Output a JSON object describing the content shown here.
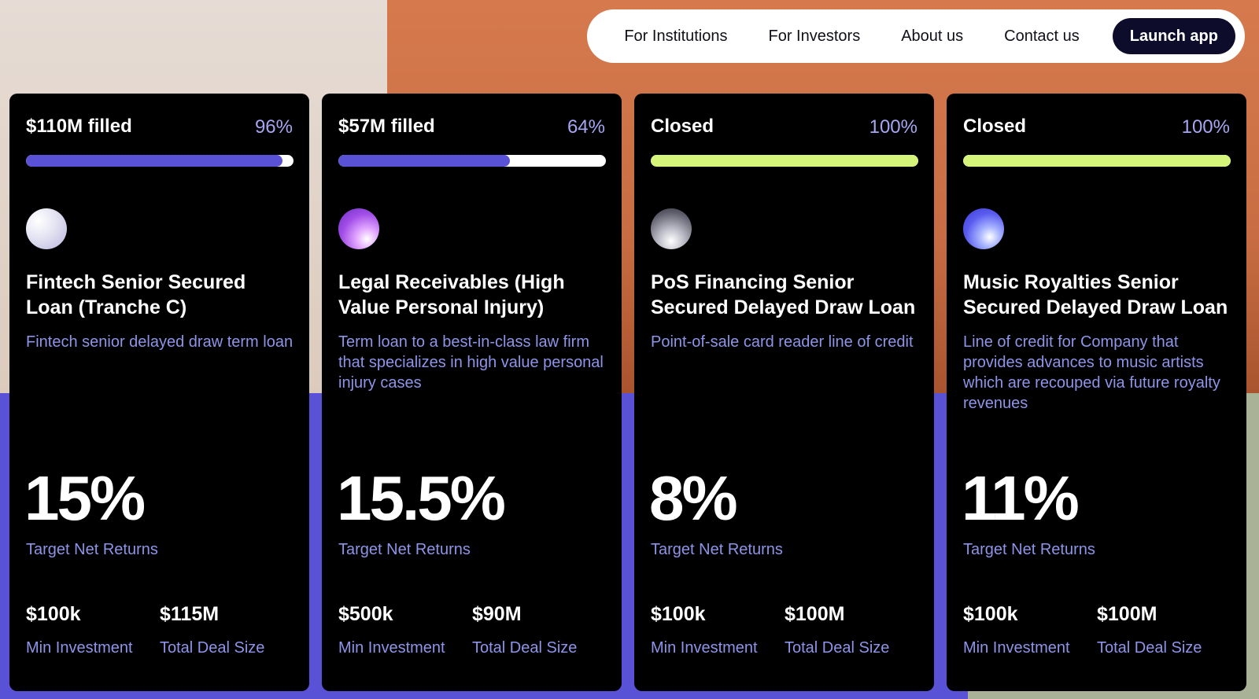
{
  "nav": {
    "links": [
      "For Institutions",
      "For Investors",
      "About us",
      "Contact us"
    ],
    "cta_label": "Launch app"
  },
  "colors": {
    "bar_blue": "#5a52d6",
    "bar_green": "#d4f57a",
    "accent_text": "#8e94e8"
  },
  "cards": [
    {
      "status": "$110M filled",
      "percent": "96%",
      "progress": 0.96,
      "bar_color": "#5a52d6",
      "avatar_gradient": "radial-gradient(circle at 30% 30%, #ffffff 0%, #e6e6f4 40%, #b9b6dc 100%)",
      "title": "Fintech Senior Secured Loan (Tranche C)",
      "description": "Fintech senior delayed draw term loan",
      "rate": "15%",
      "rate_label": "Target Net Returns",
      "min_investment": "$100k",
      "min_label": "Min Investment",
      "deal_size": "$115M",
      "deal_label": "Total Deal Size"
    },
    {
      "status": "$57M filled",
      "percent": "64%",
      "progress": 0.64,
      "bar_color": "#5a52d6",
      "avatar_gradient": "radial-gradient(circle at 70% 75%, #ffffff 0%, #e3a8ff 25%, #a24de8 60%, #6a2ec0 100%)",
      "title": "Legal Receivables (High Value Personal Injury)",
      "description": "Term loan to a best-in-class law firm that specializes in high value personal injury cases",
      "rate": "15.5%",
      "rate_label": "Target Net Returns",
      "min_investment": "$500k",
      "min_label": "Min Investment",
      "deal_size": "$90M",
      "deal_label": "Total Deal Size"
    },
    {
      "status": "Closed",
      "percent": "100%",
      "progress": 1,
      "bar_color": "#d4f57a",
      "avatar_gradient": "radial-gradient(circle at 50% 80%, #ffffff 0%, #b8b8c4 35%, #5c5c6a 75%, #3a3a44 100%)",
      "title": "PoS Financing Senior Secured Delayed Draw Loan",
      "description": "Point-of-sale card reader line of credit",
      "rate": "8%",
      "rate_label": "Target Net Returns",
      "min_investment": "$100k",
      "min_label": "Min Investment",
      "deal_size": "$100M",
      "deal_label": "Total Deal Size"
    },
    {
      "status": "Closed",
      "percent": "100%",
      "progress": 1,
      "bar_color": "#d4f57a",
      "avatar_gradient": "radial-gradient(circle at 65% 70%, #ffffff 0%, #a9b6ff 25%, #5a5cf0 60%, #3b3ad0 100%)",
      "title": "Music Royalties Senior Secured Delayed Draw Loan",
      "description": "Line of credit for Company that provides advances to music artists which are recouped via future royalty revenues",
      "rate": "11%",
      "rate_label": "Target Net Returns",
      "min_investment": "$100k",
      "min_label": "Min Investment",
      "deal_size": "$100M",
      "deal_label": "Total Deal Size"
    }
  ]
}
